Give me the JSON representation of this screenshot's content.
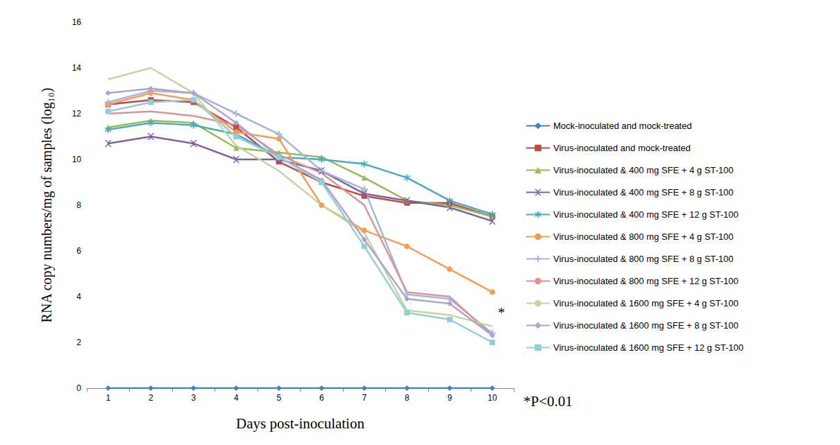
{
  "chart_data": {
    "type": "line",
    "x_label": "Days post-inoculation",
    "y_label": "RNA copy numbers/mg of samples (log₁₀)",
    "categories": [
      1,
      2,
      3,
      4,
      5,
      6,
      7,
      8,
      9,
      10
    ],
    "ylim": [
      0,
      16
    ],
    "yticks": [
      0,
      2,
      4,
      6,
      8,
      10,
      12,
      14,
      16
    ],
    "grid": false,
    "legend": "right",
    "annotations": [
      {
        "text": "*",
        "x": 10,
        "y": 3.3
      },
      {
        "text": "*P<0.01"
      }
    ],
    "series": [
      {
        "name": "Mock-inoculated and mock-treated",
        "color": "#4a7ebb",
        "marker": "diamond",
        "values": [
          0,
          0,
          0,
          0,
          0,
          0,
          0,
          0,
          0,
          0
        ]
      },
      {
        "name": "Virus-inoculated and mock-treated",
        "color": "#be4b48",
        "marker": "square",
        "values": [
          12.4,
          12.6,
          12.5,
          11.4,
          9.9,
          9.0,
          8.4,
          8.1,
          8.1,
          7.5
        ]
      },
      {
        "name": "Virus-inoculated & 400 mg SFE + 4 g ST-100",
        "color": "#98b954",
        "marker": "triangle",
        "values": [
          11.4,
          11.7,
          11.6,
          10.5,
          10.3,
          10.1,
          9.2,
          8.2,
          8.0,
          7.5
        ]
      },
      {
        "name": "Virus-inoculated & 400 mg SFE + 8 g ST-100",
        "color": "#7d60a0",
        "marker": "x",
        "values": [
          10.7,
          11.0,
          10.7,
          10.0,
          10.0,
          9.5,
          8.5,
          8.2,
          7.9,
          7.3
        ]
      },
      {
        "name": "Virus-inoculated & 400 mg SFE + 12 g ST-100",
        "color": "#46aac5",
        "marker": "star",
        "values": [
          11.3,
          11.6,
          11.5,
          11.1,
          10.1,
          10.0,
          9.8,
          9.2,
          8.2,
          7.6
        ]
      },
      {
        "name": "Virus-inoculated & 800 mg SFE + 4 g ST-100",
        "color": "#f59d56",
        "marker": "circle",
        "values": [
          12.4,
          12.9,
          12.6,
          11.2,
          10.9,
          8.0,
          6.9,
          6.2,
          5.2,
          4.2
        ]
      },
      {
        "name": "Virus-inoculated & 800 mg SFE + 8 g ST-100",
        "color": "#a5b6db",
        "marker": "plus",
        "values": [
          12.5,
          13.0,
          12.9,
          12.0,
          11.1,
          9.5,
          8.7,
          4.1,
          3.9,
          2.4
        ]
      },
      {
        "name": "Virus-inoculated & 800 mg SFE + 12 g ST-100",
        "color": "#d99694",
        "marker": "none",
        "values": [
          12.0,
          12.1,
          11.9,
          11.5,
          10.2,
          9.4,
          8.0,
          4.2,
          4.0,
          2.3
        ]
      },
      {
        "name": "Virus-inoculated & 1600 mg SFE + 4 g ST-100",
        "color": "#c3d69b",
        "marker": "none",
        "values": [
          13.5,
          14.0,
          12.9,
          10.6,
          9.5,
          8.0,
          6.8,
          3.4,
          3.2,
          2.7
        ]
      },
      {
        "name": "Virus-inoculated & 1600 mg SFE + 8 g ST-100",
        "color": "#b3a2c7",
        "marker": "diamond",
        "values": [
          12.9,
          13.1,
          12.9,
          11.6,
          10.1,
          9.1,
          6.5,
          3.9,
          3.7,
          2.3
        ]
      },
      {
        "name": "Virus-inoculated & 1600 mg SFE + 12 g ST-100",
        "color": "#93cddd",
        "marker": "square",
        "values": [
          12.1,
          12.5,
          12.6,
          11.0,
          10.1,
          9.0,
          6.2,
          3.3,
          3.0,
          2.0
        ]
      }
    ]
  }
}
